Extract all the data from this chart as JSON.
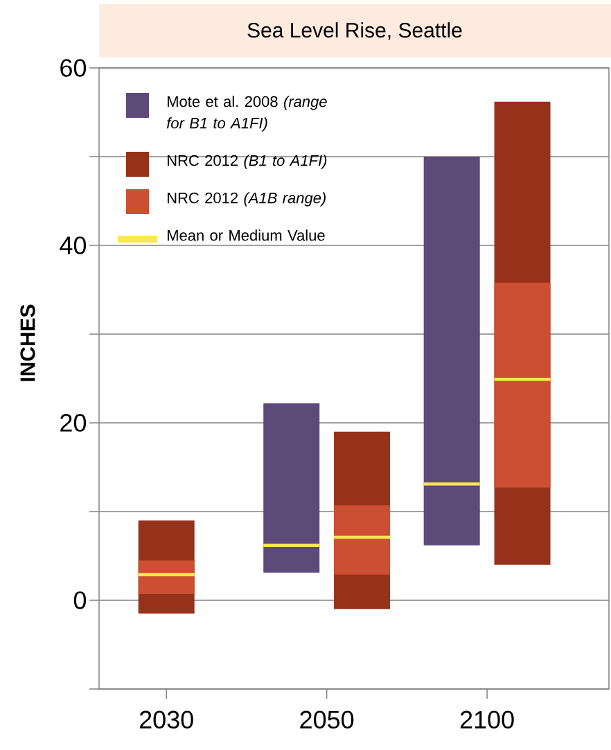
{
  "chart_data": {
    "type": "bar",
    "title": "Sea Level Rise, Seattle",
    "ylabel": "INCHES",
    "categories": [
      "2030",
      "2050",
      "2100"
    ],
    "series": [
      {
        "name": "Mote et al. 2008 *(range for B1 to A1FI)*",
        "color": "#5e4a78",
        "base": [
          null,
          3.1,
          6.2
        ],
        "values": [
          null,
          19.1,
          43.8
        ]
      },
      {
        "name": "NRC 2012 *(B1 to A1FI)*",
        "color": "#96311a",
        "base": [
          -1.5,
          -1.0,
          4.0
        ],
        "values": [
          10.5,
          20.0,
          52.2
        ]
      },
      {
        "name": "NRC 2012 *(A1B range)*",
        "color": "#cc4e33",
        "base": [
          0.7,
          2.9,
          12.7
        ],
        "values": [
          3.8,
          7.8,
          23.1
        ]
      },
      {
        "name": "Mean or Medium Value",
        "color": "#f8e854",
        "base": [
          2.9,
          7.1,
          24.9
        ],
        "values": [
          0,
          0,
          0
        ]
      },
      {
        "color": "#f8e854",
        "base": [
          null,
          6.2,
          13.1
        ],
        "values": [
          null,
          0,
          0
        ]
      }
    ],
    "ylim": [
      -10,
      60
    ],
    "yticks": [
      {
        "value": -10,
        "label": null
      },
      0,
      {
        "value": 10,
        "label": null
      },
      20,
      {
        "value": 30,
        "label": null
      },
      40,
      {
        "value": 50,
        "label": null
      },
      60
    ],
    "grid": "y",
    "legend": "top left"
  }
}
